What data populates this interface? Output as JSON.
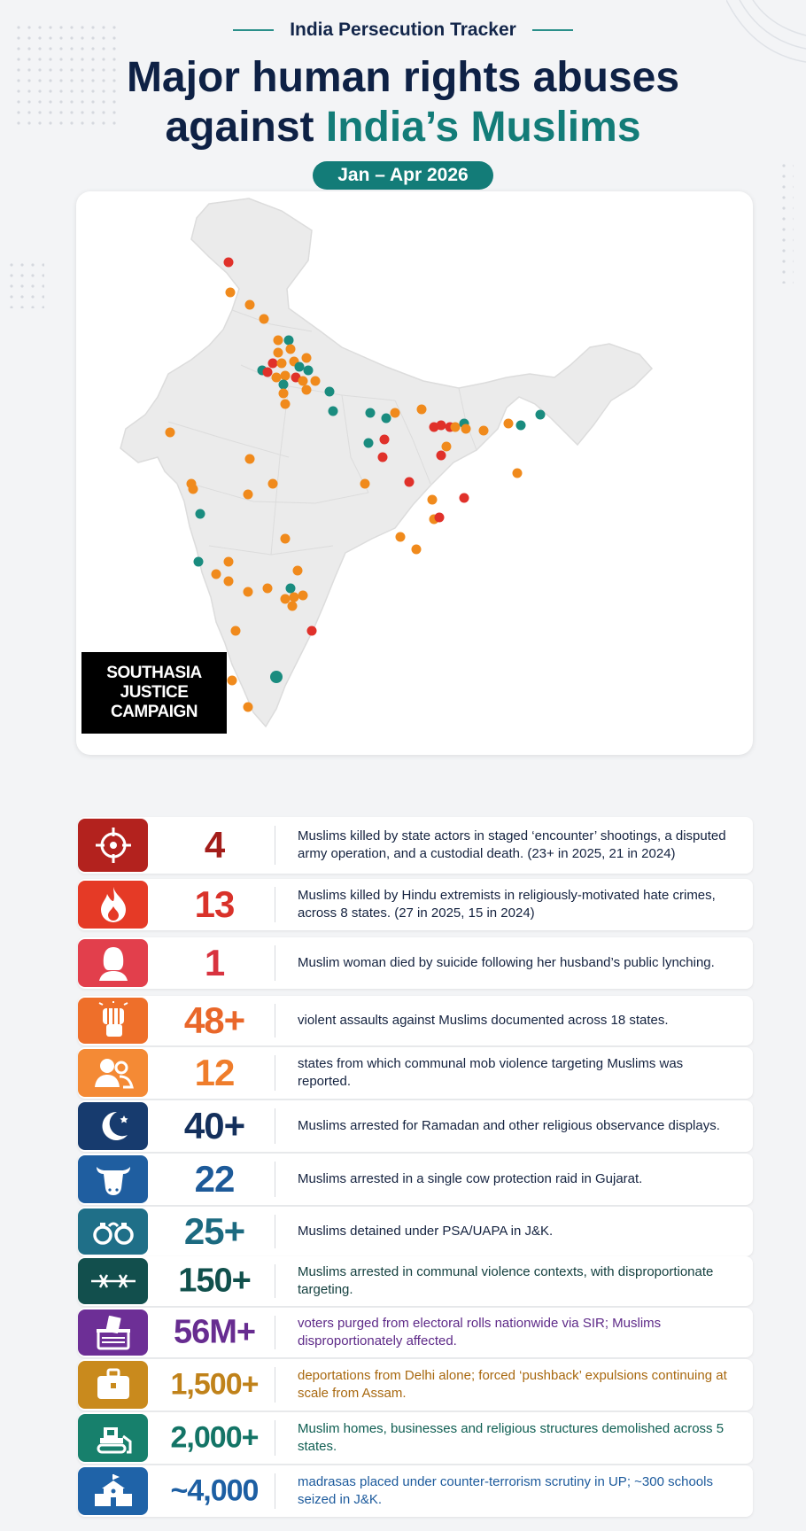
{
  "header": {
    "kicker": "India Persecution Tracker",
    "title_line1": "Major human rights abuses",
    "title_line2_prefix": "against ",
    "title_line2_accent": "India’s Muslims",
    "date_range": "Jan – Apr 2026"
  },
  "map": {
    "logo_lines": [
      "SOUTHASIA",
      "JUSTICE",
      "CAMPAIGN"
    ],
    "marker_colors": {
      "red": "#e0312a",
      "orange": "#f08a1c",
      "teal": "#1a8c7f"
    }
  },
  "stats": [
    {
      "number": "4",
      "description": "Muslims killed by state actors in staged ‘encounter’ shootings, a disputed army operation, and a custodial death. (23+ in 2025, 21 in 2024)",
      "icon": "target-icon",
      "icon_color": "#b3221e",
      "number_color": "#a31d1a",
      "text_color": "#14223f"
    },
    {
      "number": "13",
      "description": "Muslims killed by Hindu extremists in religiously-motivated hate crimes, across 8 states. (27 in 2025, 15 in 2024)",
      "icon": "fire-icon",
      "icon_color": "#e53a26",
      "number_color": "#d9322a",
      "text_color": "#14223f"
    },
    {
      "number": "1",
      "description": "Muslim woman died by suicide following her husband’s public lynching.",
      "icon": "woman-icon",
      "icon_color": "#e23f4c",
      "number_color": "#d8333f",
      "text_color": "#14223f"
    },
    {
      "number": "48+",
      "description": "violent assaults against Muslims documented across 18 states.",
      "icon": "fist-icon",
      "icon_color": "#ee6f2a",
      "number_color": "#e9672a",
      "text_color": "#14223f"
    },
    {
      "number": "12",
      "description": "states from which communal mob violence targeting Muslims was reported.",
      "icon": "group-icon",
      "icon_color": "#f48a35",
      "number_color": "#ef7d2b",
      "text_color": "#14223f"
    },
    {
      "number": "40+",
      "description": "Muslims arrested for Ramadan and other religious observance displays.",
      "icon": "crescent-icon",
      "icon_color": "#173b6e",
      "number_color": "#14305c",
      "text_color": "#14223f"
    },
    {
      "number": "22",
      "description": "Muslims arrested in a single cow protection raid in Gujarat.",
      "icon": "cow-icon",
      "icon_color": "#1f5ea0",
      "number_color": "#1d5a99",
      "text_color": "#14223f"
    },
    {
      "number": "25+",
      "description": "Muslims detained under PSA/UAPA in J&K.",
      "icon": "handcuffs-icon",
      "icon_color": "#1f6f88",
      "number_color": "#1c6a80",
      "text_color": "#14223f"
    },
    {
      "number": "150+",
      "description": "Muslims arrested in communal violence contexts, with disproportionate targeting.",
      "icon": "barbed-wire-icon",
      "icon_color": "#124f4d",
      "number_color": "#11504c",
      "text_color": "#14403f"
    },
    {
      "number": "56M+",
      "description": "voters purged from electoral rolls nationwide via SIR; Muslims disproportionately affected.",
      "icon": "ballot-box-icon",
      "icon_color": "#6d2f96",
      "number_color": "#672c90",
      "text_color": "#5e2a88"
    },
    {
      "number": "1,500+",
      "description": "deportations from Delhi alone; forced ‘pushback’ expulsions continuing at scale from Assam.",
      "icon": "suitcase-icon",
      "icon_color": "#c98a1d",
      "number_color": "#c0821a",
      "text_color": "#a8680f"
    },
    {
      "number": "2,000+",
      "description": "Muslim homes, businesses and religious structures demolished across 5 states.",
      "icon": "bulldozer-icon",
      "icon_color": "#17806c",
      "number_color": "#137466",
      "text_color": "#0f5e52"
    },
    {
      "number": "~4,000",
      "description": "madrasas placed under counter-terrorism scrutiny in UP; ~300 schools seized in J&K.",
      "icon": "school-icon",
      "icon_color": "#1f63a8",
      "number_color": "#1d5fa3",
      "text_color": "#1c5a9c"
    }
  ]
}
